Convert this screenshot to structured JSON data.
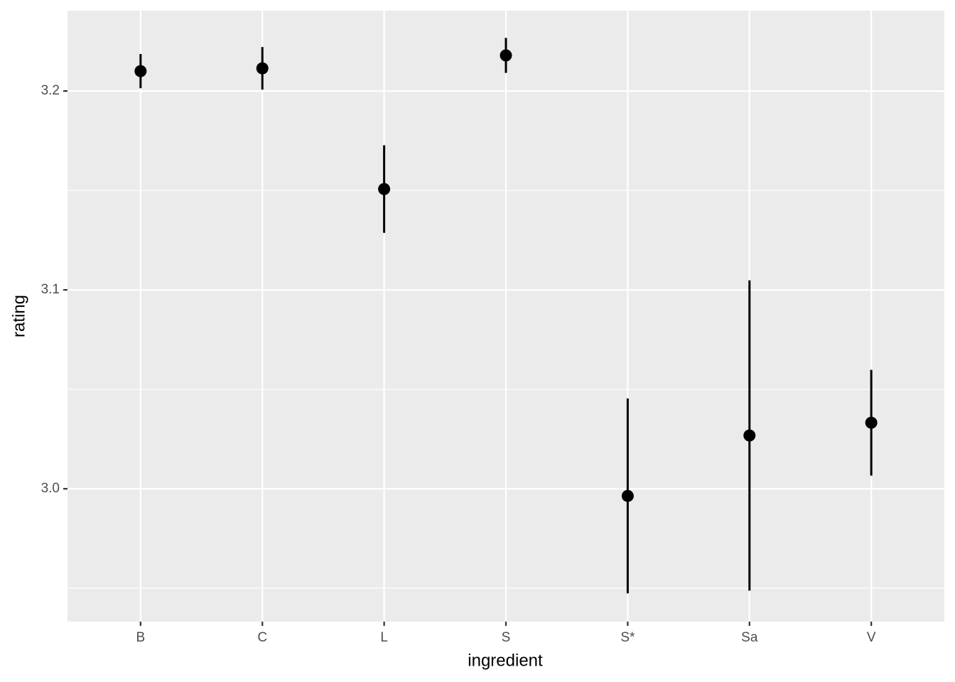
{
  "chart_data": {
    "type": "pointrange",
    "x_label": "ingredient",
    "y_label": "rating",
    "categories": [
      "B",
      "C",
      "L",
      "S",
      "S*",
      "Sa",
      "V"
    ],
    "values": [
      3.21,
      3.2114,
      3.1507,
      3.2179,
      2.9964,
      3.0268,
      3.0332
    ],
    "error": [
      0.0086,
      0.0107,
      0.022,
      0.0088,
      0.049,
      0.078,
      0.0266
    ],
    "color": "#000000",
    "ylim": [
      2.9332,
      3.2404
    ],
    "yticks": [
      {
        "value": 3,
        "label": "3.0"
      },
      3.1,
      3.2
    ],
    "y_minor_ticks": [
      2.95,
      3.05,
      3.15
    ],
    "grid": true
  }
}
